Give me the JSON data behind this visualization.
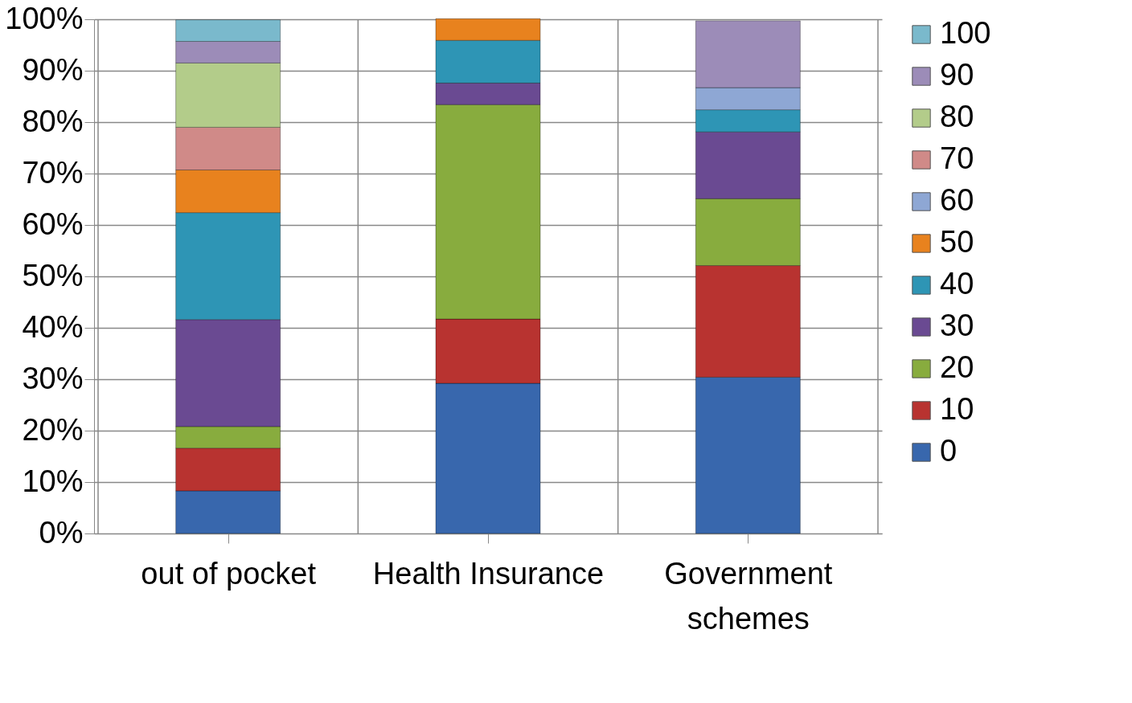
{
  "chart_data": {
    "type": "bar",
    "stacked": true,
    "categories": [
      "out of pocket",
      "Health Insurance",
      "Government schemes"
    ],
    "series": [
      {
        "name": "0",
        "color": "#3867ad",
        "values": [
          8.3,
          29.2,
          30.4
        ]
      },
      {
        "name": "10",
        "color": "#b83330",
        "values": [
          8.3,
          12.5,
          21.7
        ]
      },
      {
        "name": "20",
        "color": "#88ac3e",
        "values": [
          4.2,
          41.7,
          13.0
        ]
      },
      {
        "name": "30",
        "color": "#6a4a92",
        "values": [
          20.8,
          4.2,
          13.0
        ]
      },
      {
        "name": "40",
        "color": "#2e95b5",
        "values": [
          20.8,
          8.3,
          4.3
        ]
      },
      {
        "name": "50",
        "color": "#e8821e",
        "values": [
          8.3,
          4.2,
          null
        ]
      },
      {
        "name": "60",
        "color": "#8ea7d4",
        "values": [
          null,
          null,
          4.3
        ]
      },
      {
        "name": "70",
        "color": "#d08a88",
        "values": [
          8.3,
          null,
          null
        ]
      },
      {
        "name": "80",
        "color": "#b3cc8a",
        "values": [
          12.5,
          null,
          null
        ]
      },
      {
        "name": "90",
        "color": "#9c8cb8",
        "values": [
          4.2,
          null,
          13.0
        ]
      },
      {
        "name": "100",
        "color": "#7ab9cc",
        "values": [
          4.2,
          null,
          null
        ]
      }
    ],
    "ylim": [
      0,
      100
    ],
    "yticks": [
      {
        "value": 0,
        "label": "0%"
      },
      {
        "value": 10,
        "label": "10%"
      },
      {
        "value": 20,
        "label": "20%"
      },
      {
        "value": 30,
        "label": "30%"
      },
      {
        "value": 40,
        "label": "40%"
      },
      {
        "value": 50,
        "label": "50%"
      },
      {
        "value": 60,
        "label": "60%"
      },
      {
        "value": 70,
        "label": "70%"
      },
      {
        "value": 80,
        "label": "80%"
      },
      {
        "value": 90,
        "label": "90%"
      },
      {
        "value": 100,
        "label": "100%"
      }
    ],
    "grid": true,
    "legend": "right"
  }
}
